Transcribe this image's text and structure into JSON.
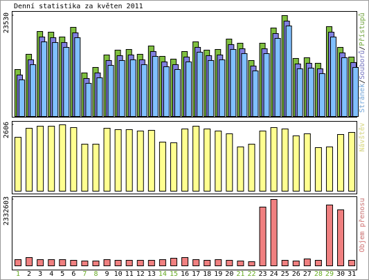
{
  "title": "Denní statistika za květen 2011",
  "legend_separator": "/",
  "chart_data": [
    {
      "type": "bar",
      "series": [
        {
          "name": "Přístupů",
          "color": "#80c040",
          "values": [
            10960,
            14505,
            19824,
            19662,
            18534,
            20791,
            10153,
            11443,
            14344,
            15472,
            15633,
            14505,
            16439,
            14022,
            13377,
            15150,
            17406,
            15472,
            15633,
            18051,
            17084,
            13055,
            17084,
            20629,
            23530,
            13538,
            13699,
            12410,
            20952,
            16117,
            13860
          ]
        },
        {
          "name": "Souborů",
          "color": "#8080e0",
          "values": [
            9670,
            13210,
            18530,
            18370,
            17240,
            19500,
            8860,
            10150,
            13050,
            14180,
            14340,
            13210,
            15150,
            12730,
            12090,
            13860,
            16120,
            14180,
            14340,
            16760,
            15790,
            11760,
            15790,
            19340,
            22240,
            12250,
            12410,
            11120,
            19660,
            14830,
            12570
          ]
        },
        {
          "name": "Stránek",
          "color": "#80c0ff",
          "values": [
            8540,
            12080,
            17400,
            17240,
            16110,
            18370,
            7730,
            9020,
            11920,
            13050,
            13210,
            12080,
            14020,
            11600,
            10960,
            12730,
            14990,
            13050,
            13210,
            15630,
            14660,
            10630,
            14660,
            18210,
            21110,
            11120,
            11280,
            9990,
            18530,
            13700,
            11440
          ]
        }
      ],
      "ylim": [
        0,
        23530
      ],
      "yticks": [
        23530
      ]
    },
    {
      "type": "bar",
      "series": [
        {
          "name": "Návštěv",
          "color": "#ffff90",
          "values": [
            2117,
            2470,
            2552,
            2552,
            2606,
            2497,
            1846,
            1846,
            2470,
            2416,
            2416,
            2362,
            2389,
            1927,
            1900,
            2443,
            2552,
            2443,
            2362,
            2253,
            1737,
            1846,
            2362,
            2497,
            2443,
            2172,
            2253,
            1710,
            1737,
            2226,
            2307
          ]
        }
      ],
      "ylim": [
        0,
        2606
      ],
      "yticks": [
        2606
      ]
    },
    {
      "type": "bar",
      "categories": [
        "1",
        "2",
        "3",
        "4",
        "5",
        "6",
        "7",
        "8",
        "9",
        "10",
        "11",
        "12",
        "13",
        "14",
        "15",
        "16",
        "17",
        "18",
        "19",
        "20",
        "21",
        "22",
        "23",
        "24",
        "25",
        "26",
        "27",
        "28",
        "29",
        "30",
        "31"
      ],
      "category_colors": [
        "#66aa22",
        "#000000",
        "#000000",
        "#000000",
        "#000000",
        "#000000",
        "#66aa22",
        "#66aa22",
        "#000000",
        "#000000",
        "#000000",
        "#000000",
        "#000000",
        "#66aa22",
        "#66aa22",
        "#000000",
        "#000000",
        "#000000",
        "#000000",
        "#000000",
        "#66aa22",
        "#66aa22",
        "#000000",
        "#000000",
        "#000000",
        "#000000",
        "#000000",
        "#66aa22",
        "#66aa22",
        "#000000",
        "#000000"
      ],
      "series": [
        {
          "name": "Objem přenosu",
          "color": "#f08080",
          "values": [
            218681,
            291575,
            218681,
            218681,
            218681,
            194383,
            170086,
            170086,
            218681,
            194383,
            194383,
            194383,
            194383,
            218681,
            267278,
            291575,
            218681,
            194383,
            218681,
            194383,
            170086,
            145788,
            2065326,
            2332603,
            194383,
            170086,
            242979,
            194383,
            2138220,
            1968134,
            194383
          ]
        }
      ],
      "ylim": [
        0,
        2332603
      ],
      "yticks": [
        2332603
      ]
    }
  ]
}
